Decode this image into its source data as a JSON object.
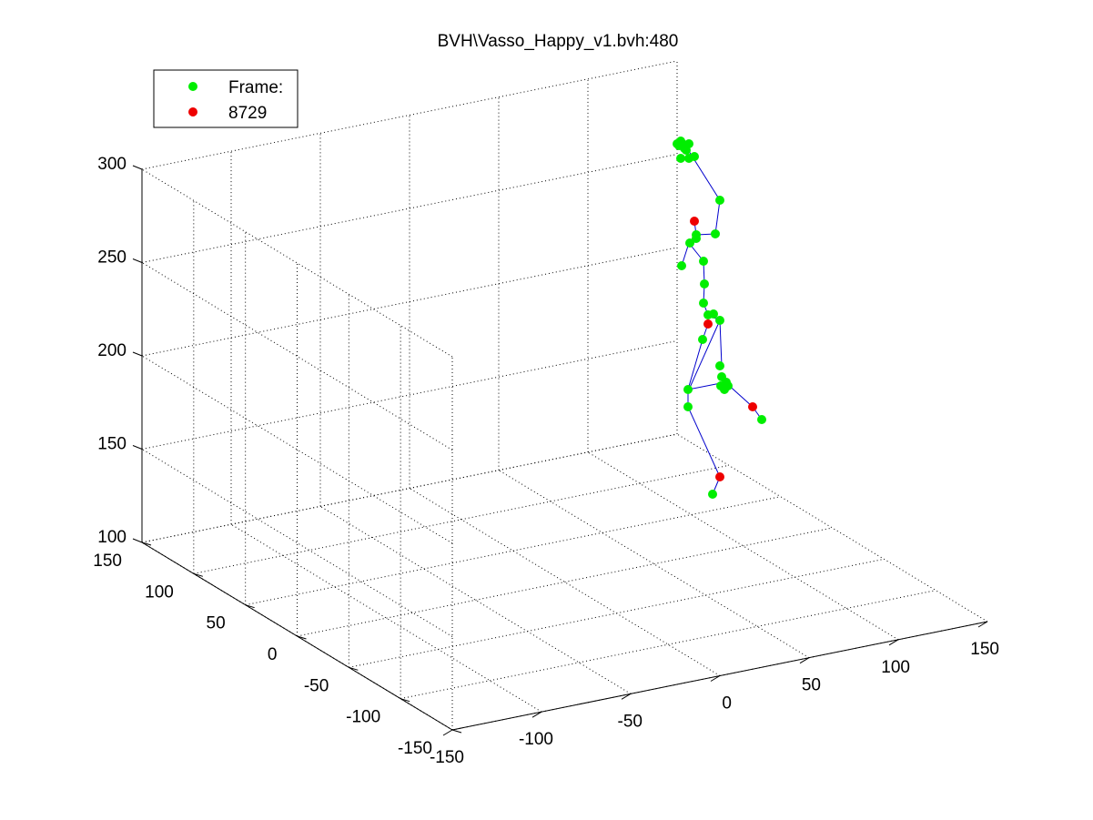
{
  "chart_data": {
    "type": "scatter",
    "title": "BVH\\Vasso_Happy_v1.bvh:480",
    "legend": {
      "placement": "top-left",
      "entries": [
        {
          "label": "Frame:",
          "color": "#00ee00",
          "marker": "circle"
        },
        {
          "label": "8729",
          "color": "#ee0000",
          "marker": "circle"
        }
      ]
    },
    "axes": {
      "x": {
        "ticks": [
          "-150",
          "-100",
          "-50",
          "0",
          "50",
          "100",
          "150"
        ],
        "range": [
          -150,
          150
        ]
      },
      "y": {
        "ticks": [
          "-150",
          "-100",
          "-50",
          "0",
          "50",
          "100",
          "150"
        ],
        "range": [
          -150,
          150
        ]
      },
      "z": {
        "ticks": [
          "100",
          "150",
          "200",
          "250",
          "300"
        ],
        "range": [
          100,
          300
        ]
      }
    },
    "grid": true,
    "projection": "3d"
  },
  "colors": {
    "green": "#00ee00",
    "red": "#ee0000",
    "bone": "#0000cc"
  }
}
